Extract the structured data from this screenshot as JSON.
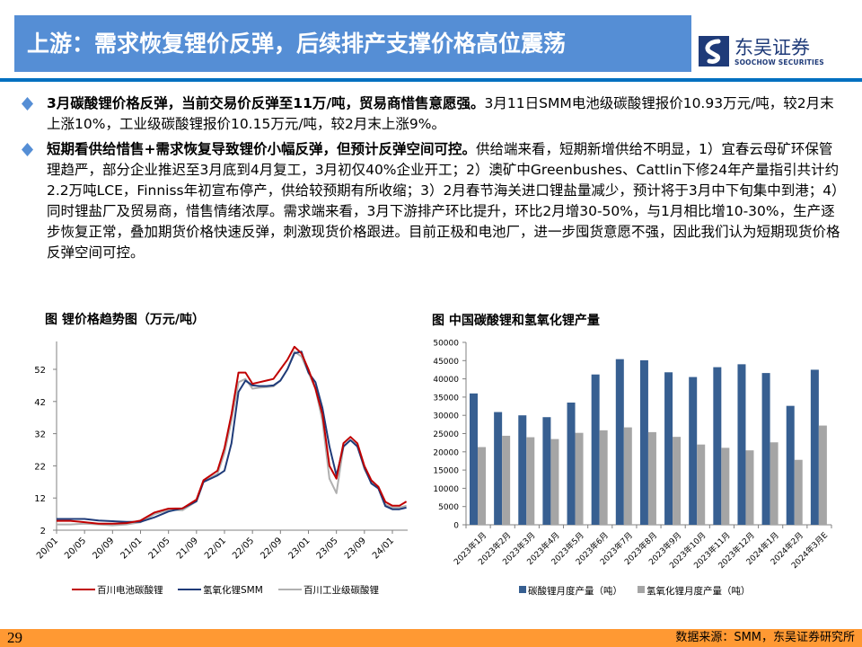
{
  "header": {
    "title": "上游：需求恢复锂价反弹，后续排产支撑价格高位震荡",
    "logo_cn": "东吴证券",
    "logo_en": "SOOCHOW SECURITIES",
    "colors": {
      "title_band": "#558ed5",
      "rule": "#0070c0",
      "logo": "#1f3b79"
    }
  },
  "bullets": [
    {
      "icon": "diamond-bullet-icon",
      "bold": "3月碳酸锂价格反弹，当前交易价反弹至11万/吨，贸易商惜售意愿强。",
      "text": "3月11日SMM电池级碳酸锂报价10.93万元/吨，较2月末上涨10%，工业级碳酸锂报价10.15万元/吨，较2月末上涨9%。"
    },
    {
      "icon": "diamond-bullet-icon",
      "bold": "短期看供给惜售+需求恢复导致锂价小幅反弹，但预计反弹空间可控。",
      "text": "供给端来看，短期新增供给不明显，1）宜春云母矿环保管理趋严，部分企业推迟至3月底到4月复工，3月初仅40%企业开工；2）澳矿中Greenbushes、Cattlin下修24年产量指引共计约2.2万吨LCE，Finniss年初宣布停产，供给较预期有所收缩；3）2月春节海关进口锂盐量减少，预计将于3月中下旬集中到港；4）同时锂盐厂及贸易商，惜售情绪浓厚。需求端来看，3月下游排产环比提升，环比2月增30-50%，与1月相比增10-30%，生产逐步恢复正常，叠加期货价格快速反弹，刺激现货价格跟进。目前正极和电池厂，进一步囤货意愿不强，因此我们认为短期现货价格反弹空间可控。"
    }
  ],
  "chart_data": [
    {
      "type": "line",
      "title": "图  锂价格趋势图（万元/吨）",
      "xlabel": "",
      "ylabel": "万元/吨",
      "ylim": [
        2,
        60
      ],
      "yticks": [
        2,
        12,
        22,
        32,
        42,
        52
      ],
      "xticks": [
        "20/01",
        "20/05",
        "20/09",
        "21/01",
        "21/05",
        "21/09",
        "22/01",
        "22/05",
        "22/09",
        "23/01",
        "23/05",
        "23/09",
        "24/01"
      ],
      "legend_position": "bottom",
      "grid": false,
      "x": [
        "20/01",
        "20/03",
        "20/05",
        "20/07",
        "20/09",
        "20/11",
        "21/01",
        "21/03",
        "21/05",
        "21/07",
        "21/09",
        "21/10",
        "21/12",
        "22/01",
        "22/02",
        "22/03",
        "22/04",
        "22/05",
        "22/06",
        "22/07",
        "22/08",
        "22/09",
        "22/10",
        "22/11",
        "22/12",
        "23/01",
        "23/02",
        "23/03",
        "23/04",
        "23/05",
        "23/06",
        "23/07",
        "23/08",
        "23/09",
        "23/10",
        "23/11",
        "23/12",
        "24/01",
        "24/02",
        "24/03"
      ],
      "series": [
        {
          "name": "百川电池碳酸锂",
          "color": "#c00000",
          "values": [
            4.9,
            4.9,
            4.5,
            4.0,
            4.0,
            4.2,
            5.0,
            7.5,
            8.7,
            8.8,
            11.5,
            17.5,
            20.5,
            27.5,
            38.0,
            51.0,
            51.0,
            47.5,
            48.0,
            48.5,
            49.0,
            52.0,
            55.0,
            59.0,
            57.0,
            52.0,
            46.0,
            38.0,
            22.0,
            18.0,
            29.0,
            31.0,
            29.0,
            22.0,
            17.5,
            15.5,
            10.8,
            9.6,
            9.6,
            10.9
          ]
        },
        {
          "name": "氢氧化锂SMM",
          "color": "#1f3b79",
          "values": [
            5.5,
            5.5,
            5.5,
            5.0,
            4.8,
            4.6,
            4.6,
            6.0,
            7.8,
            8.8,
            11.0,
            17.0,
            19.0,
            20.5,
            29.0,
            45.0,
            48.5,
            47.0,
            46.8,
            46.8,
            47.0,
            48.5,
            52.0,
            57.0,
            57.5,
            51.0,
            48.0,
            40.0,
            28.0,
            19.0,
            28.0,
            30.0,
            28.0,
            21.5,
            16.5,
            15.0,
            9.5,
            8.5,
            8.5,
            9.0
          ]
        },
        {
          "name": "百川工业级碳酸锂",
          "color": "#b0b0b0",
          "values": [
            3.8,
            3.8,
            4.0,
            3.8,
            3.5,
            3.8,
            4.5,
            7.0,
            8.3,
            8.2,
            11.0,
            17.0,
            19.5,
            26.0,
            36.0,
            48.0,
            49.0,
            46.0,
            46.3,
            46.5,
            46.7,
            48.5,
            52.0,
            57.5,
            56.0,
            51.0,
            46.0,
            36.0,
            18.0,
            13.5,
            28.0,
            30.0,
            28.5,
            21.0,
            16.8,
            15.0,
            10.0,
            9.0,
            9.0,
            9.6
          ]
        }
      ]
    },
    {
      "type": "bar",
      "title": "图  中国碳酸锂和氢氧化锂产量",
      "xlabel": "",
      "ylabel": "",
      "ylim": [
        0,
        50000
      ],
      "yticks": [
        0,
        5000,
        10000,
        15000,
        20000,
        25000,
        30000,
        35000,
        40000,
        45000,
        50000
      ],
      "legend_position": "bottom",
      "grid": false,
      "categories": [
        "2023年1月",
        "2023年2月",
        "2023年3月",
        "2023年4月",
        "2023年5月",
        "2023年6月",
        "2023年7月",
        "2023年8月",
        "2023年9月",
        "2023年10月",
        "2023年11月",
        "2023年12月",
        "2024年1月",
        "2024年2月",
        "2024年3月E"
      ],
      "series": [
        {
          "name": "碳酸锂月度产量（吨）",
          "color": "#375f91",
          "values": [
            36000,
            30900,
            30000,
            29500,
            33500,
            41200,
            45400,
            45100,
            41800,
            40500,
            43200,
            44000,
            41600,
            32600,
            42500
          ]
        },
        {
          "name": "氢氧化锂月度产量（吨）",
          "color": "#a5a5a5",
          "values": [
            21300,
            24400,
            24000,
            23500,
            25200,
            25900,
            26700,
            25400,
            24100,
            22000,
            21100,
            20400,
            22600,
            17800,
            27200
          ]
        }
      ]
    }
  ],
  "footer": {
    "page_number": "29",
    "source": "数据来源：SMM，东吴证券研究所"
  }
}
